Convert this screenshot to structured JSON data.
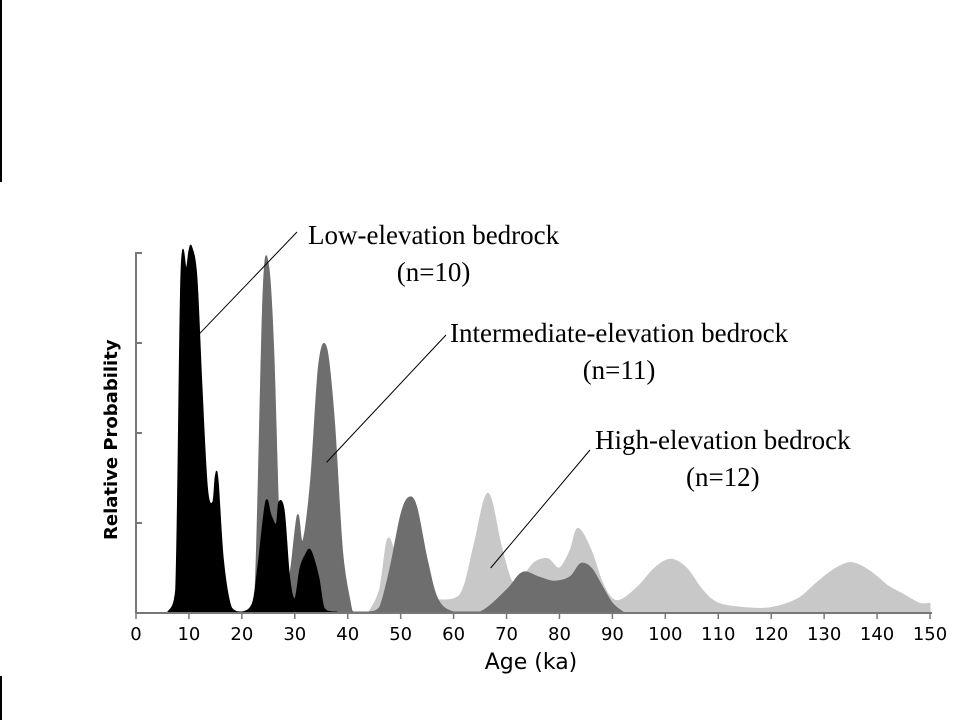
{
  "chart_data": {
    "type": "area",
    "xlabel": "Age (ka)",
    "ylabel": "Relative Probability",
    "xlim": [
      0,
      150
    ],
    "xticks": [
      0,
      10,
      20,
      30,
      40,
      50,
      60,
      70,
      80,
      90,
      100,
      110,
      120,
      130,
      140,
      150
    ],
    "ylim": [
      0,
      1
    ],
    "grid": false,
    "annotations": [
      {
        "text_line1": "Low-elevation bedrock",
        "text_line2": "(n=10)",
        "points_to": 11
      },
      {
        "text_line1": "Intermediate-elevation bedrock",
        "text_line2": "(n=11)",
        "points_to": 36
      },
      {
        "text_line1": "High-elevation bedrock",
        "text_line2": "(n=12)",
        "points_to": 67
      }
    ],
    "series": [
      {
        "color": "#c8c8c8",
        "x": [
          44,
          46,
          47.5,
          49,
          51,
          53,
          55,
          60,
          62,
          64,
          66.5,
          69,
          71,
          73,
          75,
          76.5,
          78,
          80,
          82,
          83.5,
          86,
          88,
          90,
          92,
          95,
          98,
          101,
          104,
          107,
          110,
          115,
          120,
          125,
          128,
          131,
          134,
          136,
          139,
          142,
          145,
          148,
          150
        ],
        "y": [
          0,
          0.05,
          0.165,
          0.13,
          0.06,
          0.04,
          0.03,
          0.03,
          0.06,
          0.16,
          0.27,
          0.15,
          0.07,
          0.08,
          0.11,
          0.12,
          0.12,
          0.1,
          0.14,
          0.19,
          0.14,
          0.07,
          0.03,
          0.03,
          0.06,
          0.1,
          0.12,
          0.1,
          0.05,
          0.02,
          0.01,
          0.01,
          0.03,
          0.06,
          0.09,
          0.11,
          0.11,
          0.09,
          0.06,
          0.04,
          0.02,
          0.02
        ]
      },
      {
        "color": "#6e6e6e",
        "x": [
          21,
          22.5,
          24,
          25,
          26,
          27.5,
          29,
          30.5,
          31.5,
          33,
          34.5,
          36,
          37.5,
          39,
          40.5,
          41,
          42,
          44,
          46,
          48,
          50,
          51.5,
          53,
          55,
          57,
          60,
          65,
          70,
          73,
          76,
          79,
          82,
          84,
          86,
          88,
          90,
          92
        ],
        "y": [
          0,
          0.05,
          0.72,
          0.79,
          0.6,
          0.05,
          0.08,
          0.22,
          0.16,
          0.3,
          0.56,
          0.6,
          0.43,
          0.14,
          0.02,
          0,
          0,
          0,
          0.01,
          0.1,
          0.22,
          0.26,
          0.24,
          0.12,
          0.03,
          0,
          0,
          0.05,
          0.09,
          0.08,
          0.07,
          0.08,
          0.11,
          0.1,
          0.06,
          0.02,
          0
        ]
      },
      {
        "color": "#000000",
        "x": [
          6,
          7.5,
          8.5,
          9.5,
          10,
          10.5,
          11.5,
          12.5,
          13.5,
          14.5,
          15,
          15.5,
          16.5,
          18,
          20,
          22,
          23,
          24.5,
          25.5,
          26.5,
          27,
          28,
          29,
          30,
          31,
          32,
          33,
          34.5,
          35.5,
          37,
          38
        ],
        "y": [
          0,
          0.05,
          0.77,
          0.78,
          0.82,
          0.83,
          0.76,
          0.5,
          0.28,
          0.25,
          0.31,
          0.3,
          0.12,
          0.01,
          0,
          0.02,
          0.1,
          0.25,
          0.22,
          0.2,
          0.25,
          0.23,
          0.08,
          0.03,
          0.1,
          0.13,
          0.14,
          0.08,
          0.01,
          0,
          0
        ]
      }
    ]
  }
}
